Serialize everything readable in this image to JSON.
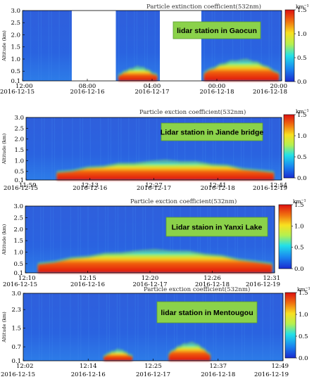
{
  "panels": [
    {
      "title": "Particle extinction coefficient(532nm)",
      "station_label": "lidar station in Gaocun",
      "y_axis_label": "Altitude (km)",
      "y_ticks": [
        "3.0",
        "2.5",
        "2.0",
        "1.5",
        "1.0",
        "0.5",
        "0.1"
      ],
      "x_time_ticks": [
        "12:00",
        "08:00",
        "04:00",
        "00:00",
        "20:00"
      ],
      "x_date_ticks": [
        "2016-12-15",
        "2016-12-16",
        "2016-12-17",
        "2016-12-18",
        "2016-12-18"
      ],
      "colorbar_unit": "km⁻¹",
      "colorbar_ticks": [
        "1.5",
        "1.0",
        "0.5",
        "0.0"
      ]
    },
    {
      "title": "Particle exction coefficient(532nm)",
      "station_label": "Lidar station in Jiande bridge",
      "y_axis_label": "Altitude (km)",
      "y_ticks": [
        "3.0",
        "2.5",
        "2.0",
        "1.5",
        "1.0",
        "0.5",
        "0.1"
      ],
      "x_time_ticks": [
        "11:59",
        "12:13",
        "12:27",
        "12:41",
        "12:54"
      ],
      "x_date_ticks": [
        "2016-12-15",
        "2016-12-16",
        "2016-12-17",
        "2016-12-18",
        "2016-12-19"
      ],
      "colorbar_unit": "km⁻¹",
      "colorbar_ticks": [
        "1.5",
        "1.0",
        "0.5",
        "0.0"
      ]
    },
    {
      "title": "Particle exction coefficient(532nm)",
      "station_label": "Lidar staion in Yanxi Lake",
      "y_axis_label": "Altitude (km)",
      "y_ticks": [
        "3.0",
        "2.5",
        "2.0",
        "1.5",
        "1.0",
        "0.5",
        "0.1"
      ],
      "x_time_ticks": [
        "12:10",
        "12:15",
        "12:20",
        "12:26",
        "12:31"
      ],
      "x_date_ticks": [
        "2016-12-15",
        "2016-12-16",
        "2016-12-17",
        "2016-12-18",
        "2016-12-19"
      ],
      "colorbar_unit": "km⁻¹",
      "colorbar_ticks": [
        "1.5",
        "1.0",
        "0.5",
        "0.0"
      ]
    },
    {
      "title": "Particle exction coefficient(532nm)",
      "station_label": "lidar station in Mentougou",
      "y_axis_label": "Altitude (km)",
      "y_ticks": [
        "3.0",
        "2.3",
        "1.5",
        "0.7",
        "0.1"
      ],
      "x_time_ticks": [
        "12:02",
        "12:14",
        "12:25",
        "12:37",
        "12:49"
      ],
      "x_date_ticks": [
        "2016-12-15",
        "2016-12-16",
        "2016-12-17",
        "2016-12-18",
        "2016-12-19"
      ],
      "colorbar_unit": "km⁻¹",
      "colorbar_ticks": [
        "1.5",
        "1.0",
        "0.5",
        "0.0"
      ]
    }
  ],
  "chart_data": [
    {
      "type": "heatmap",
      "title": "Particle extinction coefficient(532nm)",
      "annotation": "lidar station in Gaocun",
      "ylabel": "Altitude (km)",
      "ylim": [
        0.1,
        3.0
      ],
      "colorbar_range": [
        0.0,
        1.5
      ],
      "colorbar_unit": "km⁻¹",
      "x_ticks": [
        "12:00 2016-12-15",
        "08:00 2016-12-16",
        "04:00 2016-12-17",
        "00:00 2016-12-18",
        "20:00 2016-12-18"
      ],
      "missing_data_gaps": [
        [
          0.19,
          0.36
        ],
        [
          0.53,
          0.69
        ]
      ],
      "bands": [
        {
          "x": [
            0.37,
            0.52
          ],
          "base_km": 0.1,
          "top_km": 0.6,
          "peak": 1.5
        },
        {
          "x": [
            0.7,
            0.99
          ],
          "base_km": 0.1,
          "top_km": 0.9,
          "peak": 1.5
        }
      ]
    },
    {
      "type": "heatmap",
      "title": "Particle exction coefficient(532nm)",
      "annotation": "Lidar station in Jiande bridge",
      "ylabel": "Altitude (km)",
      "ylim": [
        0.1,
        3.0
      ],
      "colorbar_range": [
        0.0,
        1.5
      ],
      "colorbar_unit": "km⁻¹",
      "x_ticks": [
        "11:59 2016-12-15",
        "12:13 2016-12-16",
        "12:27 2016-12-17",
        "12:41 2016-12-18",
        "12:54 2016-12-19"
      ],
      "bands": [
        {
          "x": [
            0.12,
            0.97
          ],
          "base_km": 0.1,
          "top_km": 0.9,
          "peak": 1.5
        }
      ]
    },
    {
      "type": "heatmap",
      "title": "Particle exction coefficient(532nm)",
      "annotation": "Lidar staion in Yanxi Lake",
      "ylabel": "Altitude (km)",
      "ylim": [
        0.1,
        3.0
      ],
      "colorbar_range": [
        0.0,
        1.5
      ],
      "colorbar_unit": "km⁻¹",
      "x_ticks": [
        "12:10 2016-12-15",
        "12:15 2016-12-16",
        "12:20 2016-12-17",
        "12:26 2016-12-18",
        "12:31 2016-12-19"
      ],
      "bands": [
        {
          "x": [
            0.05,
            0.99
          ],
          "base_km": 0.1,
          "top_km": 1.0,
          "peak": 1.5
        }
      ]
    },
    {
      "type": "heatmap",
      "title": "Particle exction coefficient(532nm)",
      "annotation": "lidar station in Mentougou",
      "ylabel": "Altitude (km)",
      "ylim": [
        0.1,
        3.0
      ],
      "colorbar_range": [
        0.0,
        1.5
      ],
      "colorbar_unit": "km⁻¹",
      "x_ticks": [
        "12:02 2016-12-15",
        "12:14 2016-12-16",
        "12:25 2016-12-17",
        "12:37 2016-12-18",
        "12:49 2016-12-19"
      ],
      "bands": [
        {
          "x": [
            0.31,
            0.42
          ],
          "base_km": 0.1,
          "top_km": 0.5,
          "peak": 1.2
        },
        {
          "x": [
            0.56,
            0.72
          ],
          "base_km": 0.1,
          "top_km": 0.8,
          "peak": 1.5
        }
      ]
    }
  ],
  "colors": {
    "background_field": "#2a5bd8",
    "label_box": "#8bd24a",
    "colorbar_stops": [
      "#1a2bd0",
      "#1a86f0",
      "#22e0e8",
      "#b4f050",
      "#f8e020",
      "#f07010",
      "#dd1010"
    ]
  }
}
